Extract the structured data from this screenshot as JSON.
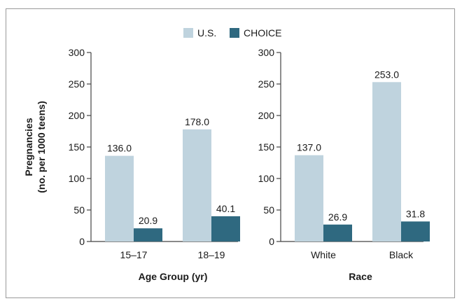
{
  "chart_data": {
    "type": "bar",
    "ylabel_lines": [
      "Pregnancies",
      "(no. per 1000 teens)"
    ],
    "legend": [
      {
        "name": "U.S.",
        "color": "#bfd3de"
      },
      {
        "name": "CHOICE",
        "color": "#2f6980"
      }
    ],
    "ylim": [
      0,
      300
    ],
    "yticks": [
      "0",
      "50",
      "100",
      "150",
      "200",
      "250",
      "300"
    ],
    "panels": [
      {
        "xlabel": "Age Group (yr)",
        "categories": [
          "15–17",
          "18–19"
        ],
        "series": [
          {
            "name": "U.S.",
            "values": [
              136.0,
              178.0
            ],
            "labels": [
              "136.0",
              "178.0"
            ]
          },
          {
            "name": "CHOICE",
            "values": [
              20.9,
              40.1
            ],
            "labels": [
              "20.9",
              "40.1"
            ]
          }
        ]
      },
      {
        "xlabel": "Race",
        "categories": [
          "White",
          "Black"
        ],
        "series": [
          {
            "name": "U.S.",
            "values": [
              137.0,
              253.0
            ],
            "labels": [
              "137.0",
              "253.0"
            ]
          },
          {
            "name": "CHOICE",
            "values": [
              26.9,
              31.8
            ],
            "labels": [
              "26.9",
              "31.8"
            ]
          }
        ]
      }
    ]
  }
}
